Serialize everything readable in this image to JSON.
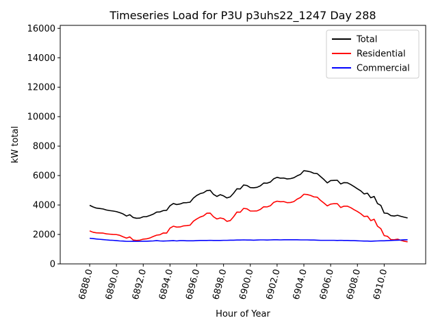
{
  "chart_data": {
    "type": "line",
    "title": "Timeseries Load for P3U p3uhs22_1247  Day 288",
    "xlabel": "Hour of Year",
    "ylabel": "kW total",
    "xlim": [
      6885.8,
      6913.1
    ],
    "ylim": [
      0,
      16200
    ],
    "x_ticks": [
      6888,
      6890,
      6892,
      6894,
      6896,
      6898,
      6900,
      6902,
      6904,
      6906,
      6908,
      6910
    ],
    "x_tick_labels": [
      "6888.0",
      "6890.0",
      "6892.0",
      "6894.0",
      "6896.0",
      "6898.0",
      "6900.0",
      "6902.0",
      "6904.0",
      "6906.0",
      "6908.0",
      "6910.0"
    ],
    "y_ticks": [
      0,
      2000,
      4000,
      6000,
      8000,
      10000,
      12000,
      14000,
      16000
    ],
    "y_tick_labels": [
      "0",
      "2000",
      "4000",
      "6000",
      "8000",
      "10000",
      "12000",
      "14000",
      "16000"
    ],
    "legend_position": "top-right",
    "x": [
      6888.0,
      6888.25,
      6888.5,
      6888.75,
      6889.0,
      6889.25,
      6889.5,
      6889.75,
      6890.0,
      6890.25,
      6890.5,
      6890.75,
      6891.0,
      6891.25,
      6891.5,
      6891.75,
      6892.0,
      6892.25,
      6892.5,
      6892.75,
      6893.0,
      6893.25,
      6893.5,
      6893.75,
      6894.0,
      6894.25,
      6894.5,
      6894.75,
      6895.0,
      6895.25,
      6895.5,
      6895.75,
      6896.0,
      6896.25,
      6896.5,
      6896.75,
      6897.0,
      6897.25,
      6897.5,
      6897.75,
      6898.0,
      6898.25,
      6898.5,
      6898.75,
      6899.0,
      6899.25,
      6899.5,
      6899.75,
      6900.0,
      6900.25,
      6900.5,
      6900.75,
      6901.0,
      6901.25,
      6901.5,
      6901.75,
      6902.0,
      6902.25,
      6902.5,
      6902.75,
      6903.0,
      6903.25,
      6903.5,
      6903.75,
      6904.0,
      6904.25,
      6904.5,
      6904.75,
      6905.0,
      6905.25,
      6905.5,
      6905.75,
      6906.0,
      6906.25,
      6906.5,
      6906.75,
      6907.0,
      6907.25,
      6907.5,
      6907.75,
      6908.0,
      6908.25,
      6908.5,
      6908.75,
      6909.0,
      6909.25,
      6909.5,
      6909.75,
      6910.0,
      6910.25,
      6910.5,
      6910.75,
      6911.0,
      6911.25,
      6911.5,
      6911.75
    ],
    "series": [
      {
        "name": "Total",
        "color": "#000000",
        "values": [
          3980,
          3870,
          3790,
          3760,
          3730,
          3660,
          3620,
          3590,
          3550,
          3480,
          3390,
          3250,
          3340,
          3150,
          3100,
          3110,
          3200,
          3210,
          3290,
          3380,
          3520,
          3530,
          3620,
          3640,
          3950,
          4100,
          4030,
          4070,
          4150,
          4160,
          4190,
          4470,
          4650,
          4770,
          4830,
          4980,
          5000,
          4720,
          4580,
          4700,
          4620,
          4480,
          4550,
          4800,
          5100,
          5090,
          5360,
          5320,
          5180,
          5170,
          5200,
          5300,
          5490,
          5480,
          5560,
          5780,
          5880,
          5820,
          5830,
          5770,
          5790,
          5850,
          5980,
          6080,
          6330,
          6300,
          6250,
          6150,
          6130,
          5930,
          5730,
          5500,
          5660,
          5670,
          5680,
          5430,
          5520,
          5510,
          5390,
          5250,
          5100,
          4960,
          4750,
          4800,
          4490,
          4580,
          4100,
          3970,
          3450,
          3430,
          3280,
          3250,
          3300,
          3230,
          3170,
          3120
        ]
      },
      {
        "name": "Residential",
        "color": "#ff0000",
        "values": [
          2240,
          2150,
          2110,
          2100,
          2090,
          2040,
          2020,
          2000,
          1990,
          1940,
          1840,
          1750,
          1830,
          1620,
          1590,
          1610,
          1680,
          1700,
          1760,
          1860,
          1950,
          1980,
          2100,
          2090,
          2430,
          2560,
          2500,
          2510,
          2580,
          2600,
          2630,
          2900,
          3050,
          3180,
          3260,
          3440,
          3450,
          3200,
          3050,
          3120,
          3070,
          2890,
          2940,
          3200,
          3520,
          3510,
          3770,
          3740,
          3590,
          3590,
          3600,
          3700,
          3880,
          3870,
          3950,
          4180,
          4260,
          4220,
          4230,
          4160,
          4170,
          4230,
          4400,
          4510,
          4730,
          4710,
          4650,
          4550,
          4530,
          4310,
          4130,
          3940,
          4060,
          4090,
          4090,
          3830,
          3920,
          3920,
          3820,
          3680,
          3560,
          3410,
          3220,
          3240,
          2940,
          3030,
          2560,
          2390,
          1920,
          1870,
          1650,
          1640,
          1680,
          1600,
          1540,
          1500
        ]
      },
      {
        "name": "Commercial",
        "color": "#0000ff",
        "values": [
          1740,
          1720,
          1690,
          1670,
          1650,
          1630,
          1610,
          1600,
          1580,
          1560,
          1550,
          1530,
          1530,
          1540,
          1530,
          1530,
          1540,
          1540,
          1550,
          1560,
          1580,
          1560,
          1550,
          1560,
          1570,
          1580,
          1560,
          1580,
          1580,
          1570,
          1570,
          1570,
          1580,
          1590,
          1590,
          1590,
          1600,
          1590,
          1590,
          1590,
          1600,
          1600,
          1610,
          1610,
          1620,
          1620,
          1630,
          1620,
          1620,
          1610,
          1620,
          1630,
          1630,
          1620,
          1630,
          1640,
          1640,
          1630,
          1640,
          1640,
          1640,
          1640,
          1640,
          1630,
          1630,
          1630,
          1620,
          1620,
          1610,
          1600,
          1600,
          1600,
          1600,
          1600,
          1590,
          1600,
          1590,
          1590,
          1580,
          1580,
          1570,
          1560,
          1550,
          1550,
          1540,
          1550,
          1560,
          1570,
          1570,
          1580,
          1590,
          1600,
          1610,
          1620,
          1640,
          1640
        ]
      }
    ]
  }
}
